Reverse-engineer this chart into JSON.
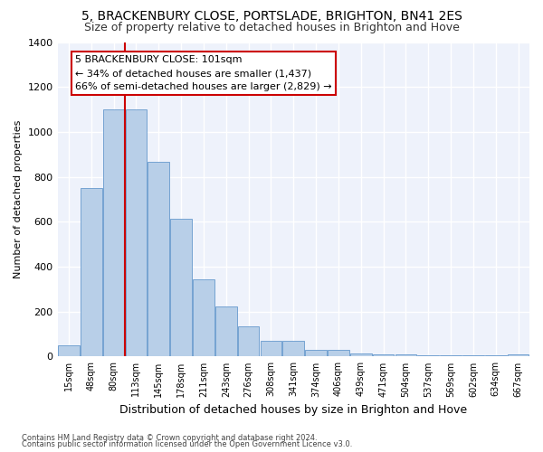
{
  "title": "5, BRACKENBURY CLOSE, PORTSLADE, BRIGHTON, BN41 2ES",
  "subtitle": "Size of property relative to detached houses in Brighton and Hove",
  "xlabel": "Distribution of detached houses by size in Brighton and Hove",
  "ylabel": "Number of detached properties",
  "footnote1": "Contains HM Land Registry data © Crown copyright and database right 2024.",
  "footnote2": "Contains public sector information licensed under the Open Government Licence v3.0.",
  "annotation_line1": "5 BRACKENBURY CLOSE: 101sqm",
  "annotation_line2": "← 34% of detached houses are smaller (1,437)",
  "annotation_line3": "66% of semi-detached houses are larger (2,829) →",
  "bar_color": "#b8cfe8",
  "bar_edge_color": "#6699cc",
  "vline_color": "#cc0000",
  "categories": [
    "15sqm",
    "48sqm",
    "80sqm",
    "113sqm",
    "145sqm",
    "178sqm",
    "211sqm",
    "243sqm",
    "276sqm",
    "308sqm",
    "341sqm",
    "374sqm",
    "406sqm",
    "439sqm",
    "471sqm",
    "504sqm",
    "537sqm",
    "569sqm",
    "602sqm",
    "634sqm",
    "667sqm"
  ],
  "values": [
    50,
    750,
    1100,
    1100,
    865,
    615,
    345,
    225,
    135,
    70,
    70,
    30,
    30,
    15,
    10,
    10,
    5,
    5,
    5,
    5,
    10
  ],
  "vline_pos": 2.5,
  "ylim": [
    0,
    1400
  ],
  "yticks": [
    0,
    200,
    400,
    600,
    800,
    1000,
    1200,
    1400
  ],
  "bg_color": "#eef2fb",
  "grid_color": "#ffffff",
  "title_fontsize": 10,
  "subtitle_fontsize": 9,
  "ylabel_fontsize": 8,
  "xlabel_fontsize": 9,
  "tick_fontsize": 7,
  "footnote_fontsize": 6,
  "annot_fontsize": 8
}
